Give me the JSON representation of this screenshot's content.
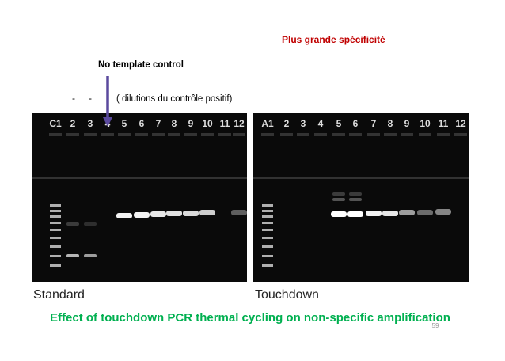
{
  "header": {
    "title": "Plus grande spécificité"
  },
  "annotations": {
    "ntc": "No template control",
    "minus_1": "-",
    "minus_2": "-",
    "dilutions": "( dilutions du contrôle positif)"
  },
  "gels": [
    {
      "lanes": [
        "C1",
        "2",
        "3",
        "4",
        "5",
        "6",
        "7",
        "8",
        "9",
        "10",
        "11",
        "12"
      ],
      "label": "Standard"
    },
    {
      "lanes": [
        "A1",
        "2",
        "3",
        "4",
        "5",
        "6",
        "7",
        "8",
        "9",
        "10",
        "11",
        "12"
      ],
      "label": "Touchdown"
    }
  ],
  "caption": "Effect of touchdown PCR thermal cycling on non-specific amplification",
  "page_number": "59"
}
